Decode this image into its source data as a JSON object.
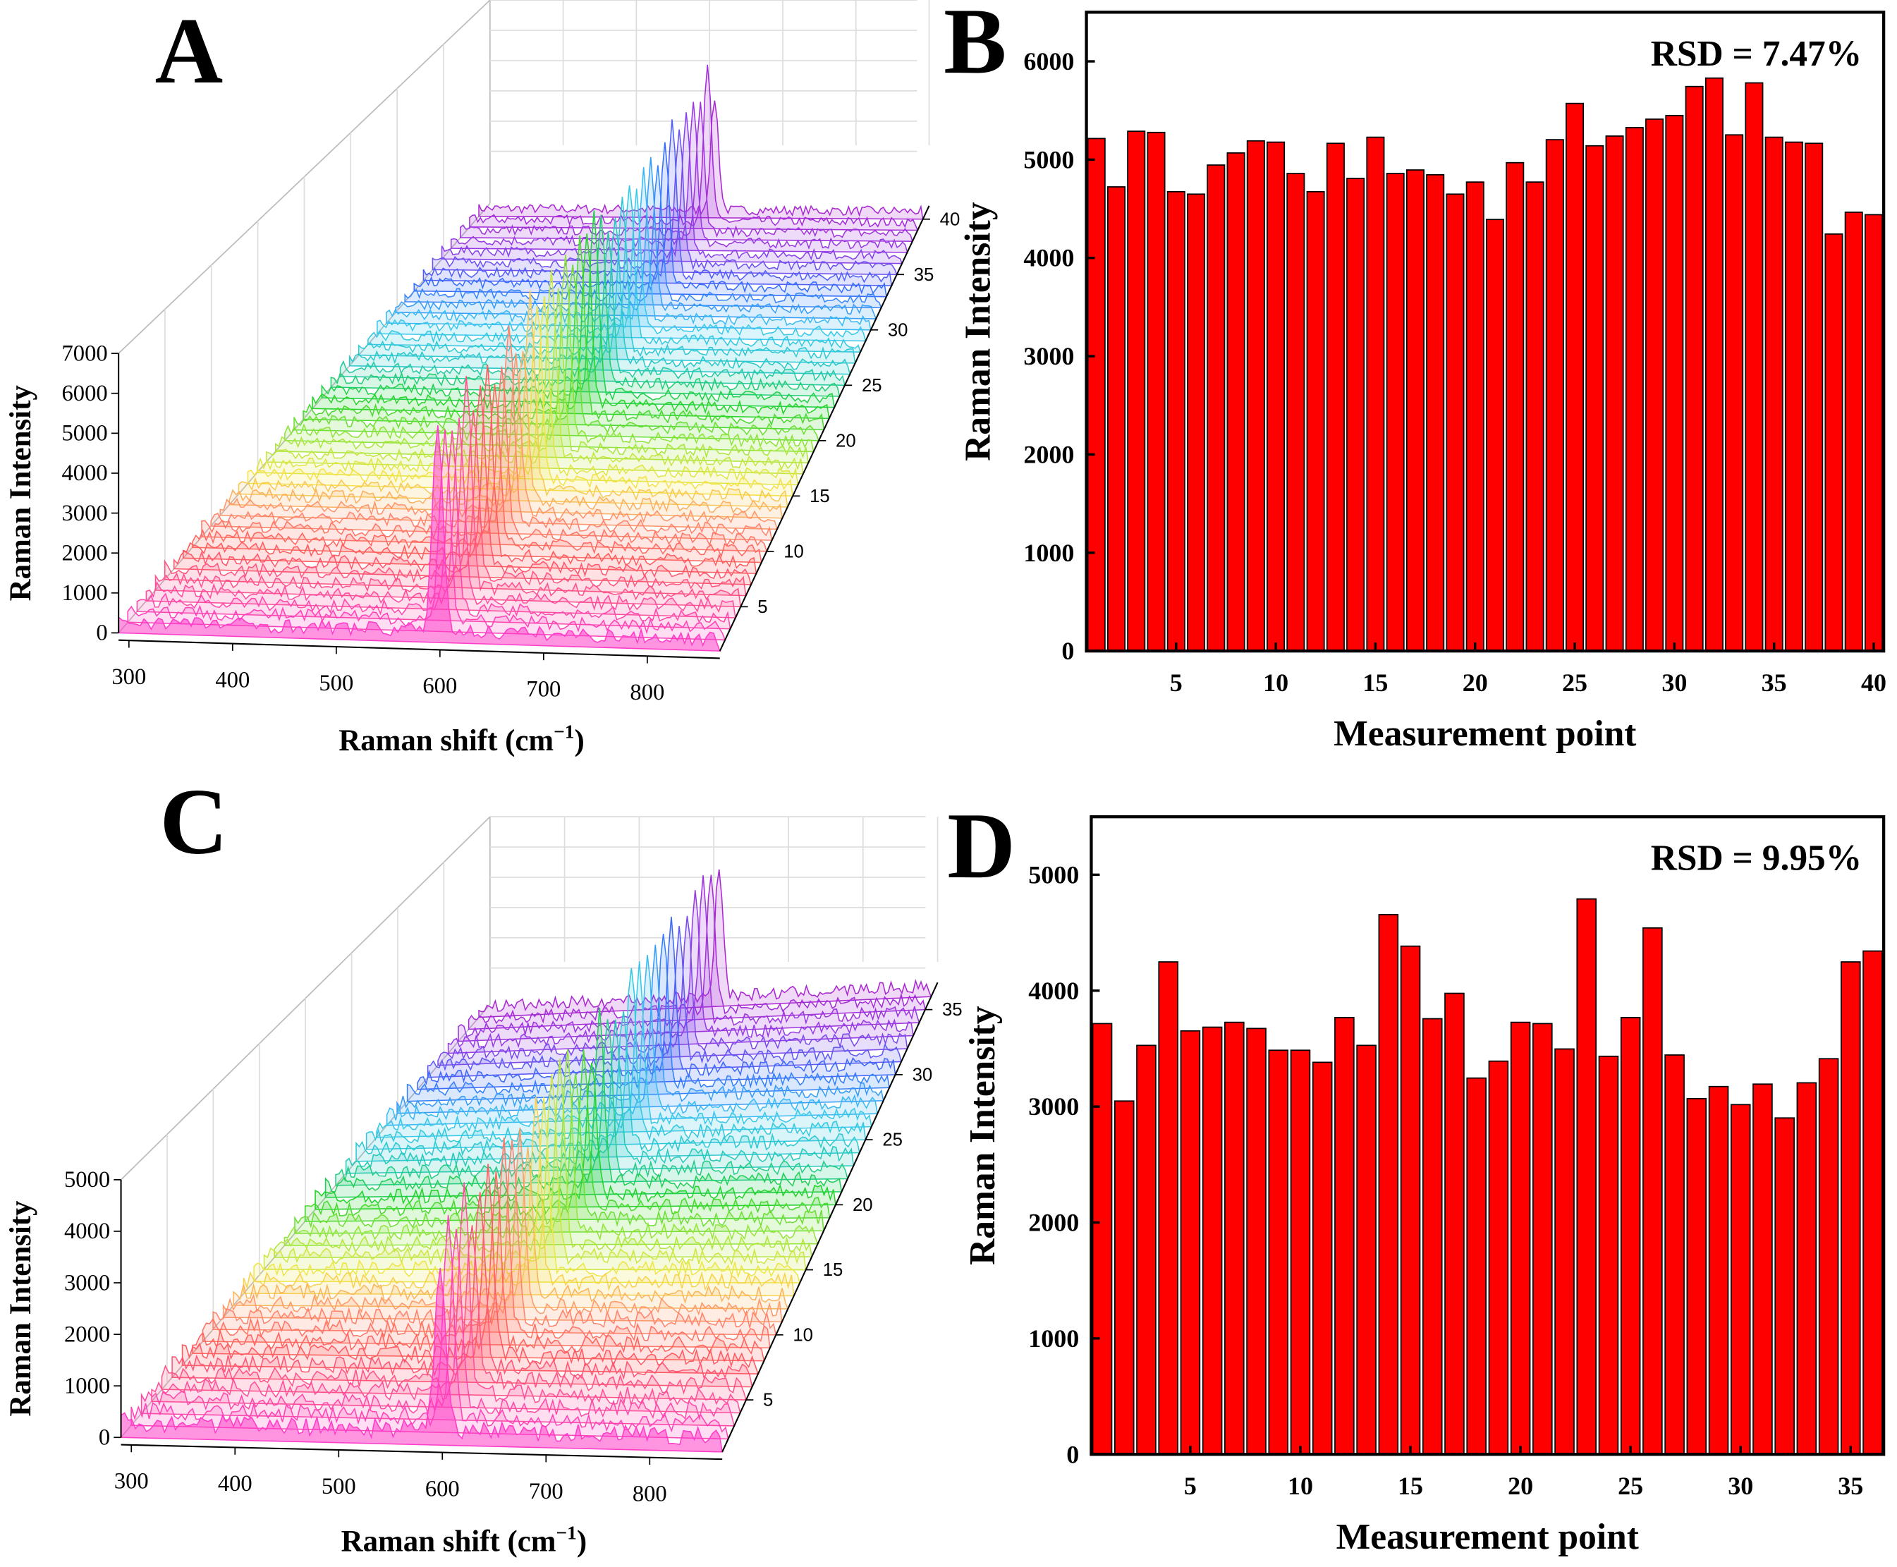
{
  "chart_data": [
    {
      "panel": "A",
      "type": "line",
      "title": "",
      "xlabel": "Raman shift (cm",
      "xlabel_sup": "−1",
      "xlabel_close": ")",
      "ylabel": "Raman Intensity",
      "x_ticks": [
        "300",
        "400",
        "500",
        "600",
        "700",
        "800"
      ],
      "y_ticks": [
        "0",
        "1000",
        "2000",
        "3000",
        "4000",
        "5000",
        "6000",
        "7000"
      ],
      "z_ticks": [
        "5",
        "10",
        "15",
        "20",
        "25",
        "30",
        "35",
        "40"
      ],
      "xlim": [
        290,
        870
      ],
      "ylim": [
        0,
        7000
      ],
      "n_spectra": 40,
      "peak_position": 598,
      "peak_intensity_approx": 5000,
      "baseline_approx": 300
    },
    {
      "panel": "B",
      "type": "bar",
      "xlabel": "Measurement point",
      "ylabel": "Raman Intensity",
      "annotation": "RSD = 7.47%",
      "x_ticks": [
        "5",
        "10",
        "15",
        "20",
        "25",
        "30",
        "35",
        "40"
      ],
      "y_ticks": [
        "0",
        "1000",
        "2000",
        "3000",
        "4000",
        "5000",
        "6000"
      ],
      "ylim": [
        0,
        6500
      ],
      "xlim": [
        0.5,
        40.5
      ],
      "bar_color": "#ff0000",
      "values": [
        5215,
        4723,
        5289,
        5277,
        4674,
        4649,
        4945,
        5068,
        5191,
        5178,
        4859,
        4674,
        5166,
        4809,
        5228,
        4859,
        4895,
        4846,
        4649,
        4772,
        4391,
        4969,
        4772,
        5203,
        5572,
        5141,
        5240,
        5326,
        5412,
        5449,
        5744,
        5830,
        5252,
        5781,
        5228,
        5178,
        5166,
        4243,
        4465,
        4440
      ]
    },
    {
      "panel": "C",
      "type": "line",
      "xlabel": "Raman shift (cm",
      "xlabel_sup": "−1",
      "xlabel_close": ")",
      "ylabel": "Raman Intensity",
      "x_ticks": [
        "300",
        "400",
        "500",
        "600",
        "700",
        "800"
      ],
      "y_ticks": [
        "0",
        "1000",
        "2000",
        "3000",
        "4000",
        "5000"
      ],
      "z_ticks": [
        "5",
        "10",
        "15",
        "20",
        "25",
        "30",
        "35"
      ],
      "xlim": [
        290,
        870
      ],
      "ylim": [
        0,
        5000
      ],
      "n_spectra": 36,
      "peak_position": 598,
      "peak_intensity_approx": 3700,
      "baseline_approx": 300
    },
    {
      "panel": "D",
      "type": "bar",
      "xlabel": "Measurement point",
      "ylabel": "Raman Intensity",
      "annotation": "RSD = 9.95%",
      "x_ticks": [
        "5",
        "10",
        "15",
        "20",
        "25",
        "30",
        "35"
      ],
      "y_ticks": [
        "0",
        "1000",
        "2000",
        "3000",
        "4000",
        "5000"
      ],
      "ylim": [
        0,
        5500
      ],
      "xlim": [
        0.5,
        36.5
      ],
      "bar_color": "#ff0000",
      "values": [
        3716,
        3048,
        3528,
        4248,
        3653,
        3685,
        3727,
        3674,
        3486,
        3486,
        3382,
        3768,
        3528,
        4656,
        4384,
        3758,
        3977,
        3246,
        3392,
        3727,
        3716,
        3497,
        4791,
        3434,
        3768,
        4541,
        3445,
        3069,
        3173,
        3017,
        3194,
        2902,
        3205,
        3413,
        4248,
        4342
      ]
    }
  ]
}
